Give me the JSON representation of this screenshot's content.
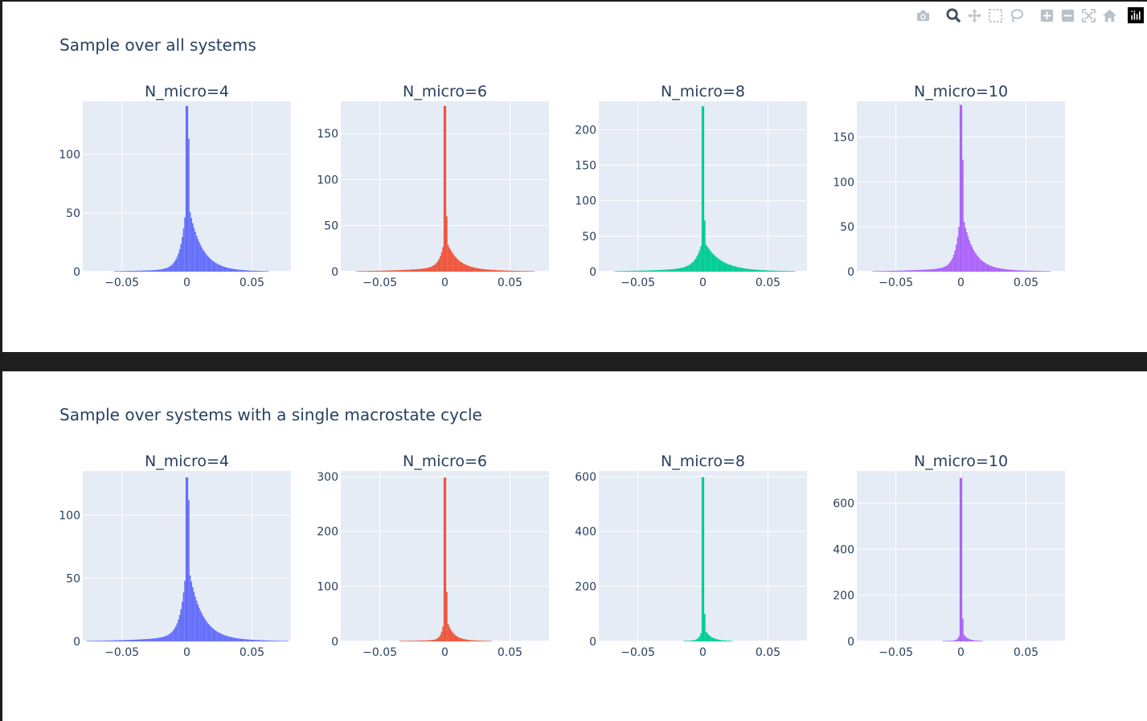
{
  "figures": [
    {
      "title": "Sample over all systems",
      "panels": [
        {
          "subtitle": "N_micro=4",
          "color": "#636efa",
          "ymax": 145,
          "yticks": [
            0,
            50,
            100
          ],
          "peak": 141,
          "peak2": 113,
          "width": 0.006,
          "tailRatio": 0.02,
          "xticks": [
            "−0.05",
            "0",
            "0.05"
          ]
        },
        {
          "subtitle": "N_micro=6",
          "color": "#EF553B",
          "ymax": 185,
          "yticks": [
            0,
            50,
            100,
            150
          ],
          "peak": 180,
          "peak2": 60,
          "width": 0.005,
          "tailRatio": 0.03,
          "xticks": [
            "−0.05",
            "0",
            "0.05"
          ]
        },
        {
          "subtitle": "N_micro=8",
          "color": "#00cc96",
          "ymax": 240,
          "yticks": [
            0,
            50,
            100,
            150,
            200
          ],
          "peak": 233,
          "peak2": 72,
          "width": 0.007,
          "tailRatio": 0.03,
          "xticks": [
            "−0.05",
            "0",
            "0.05"
          ]
        },
        {
          "subtitle": "N_micro=10",
          "color": "#ab63fa",
          "ymax": 190,
          "yticks": [
            0,
            50,
            100,
            150
          ],
          "peak": 186,
          "peak2": 125,
          "width": 0.005,
          "tailRatio": 0.03,
          "xticks": [
            "−0.05",
            "0",
            "0.05"
          ]
        }
      ]
    },
    {
      "title": "Sample over systems with a single macrostate cycle",
      "panels": [
        {
          "subtitle": "N_micro=4",
          "color": "#636efa",
          "ymax": 135,
          "yticks": [
            0,
            50,
            100
          ],
          "peak": 130,
          "peak2": 112,
          "width": 0.006,
          "tailRatio": 0.04,
          "xticks": [
            "−0.05",
            "0",
            "0.05"
          ]
        },
        {
          "subtitle": "N_micro=6",
          "color": "#EF553B",
          "ymax": 310,
          "yticks": [
            0,
            100,
            200,
            300
          ],
          "peak": 298,
          "peak2": 90,
          "width": 0.003,
          "tailRatio": 0.01,
          "xticks": [
            "−0.05",
            "0",
            "0.05"
          ]
        },
        {
          "subtitle": "N_micro=8",
          "color": "#00cc96",
          "ymax": 620,
          "yticks": [
            0,
            200,
            400,
            600
          ],
          "peak": 598,
          "peak2": 100,
          "width": 0.003,
          "tailRatio": 0.005,
          "xticks": [
            "−0.05",
            "0",
            "0.05"
          ]
        },
        {
          "subtitle": "N_micro=10",
          "color": "#ab63fa",
          "ymax": 740,
          "yticks": [
            0,
            200,
            400,
            600
          ],
          "peak": 710,
          "peak2": 100,
          "width": 0.002,
          "tailRatio": 0.005,
          "xticks": [
            "−0.05",
            "0",
            "0.05"
          ]
        }
      ]
    }
  ],
  "chart_data": [
    {
      "type": "bar",
      "title": "Sample over all systems",
      "series": [
        {
          "name": "N_micro=4",
          "x_range": [
            -0.08,
            0.08
          ],
          "peak_x": 0,
          "peak_count": 141,
          "y_range": [
            0,
            145
          ]
        },
        {
          "name": "N_micro=6",
          "x_range": [
            -0.08,
            0.08
          ],
          "peak_x": 0,
          "peak_count": 180,
          "y_range": [
            0,
            185
          ]
        },
        {
          "name": "N_micro=8",
          "x_range": [
            -0.08,
            0.08
          ],
          "peak_x": 0,
          "peak_count": 233,
          "y_range": [
            0,
            240
          ]
        },
        {
          "name": "N_micro=10",
          "x_range": [
            -0.08,
            0.08
          ],
          "peak_x": 0,
          "peak_count": 186,
          "y_range": [
            0,
            190
          ]
        }
      ]
    },
    {
      "type": "bar",
      "title": "Sample over systems with a single macrostate cycle",
      "series": [
        {
          "name": "N_micro=4",
          "x_range": [
            -0.08,
            0.08
          ],
          "peak_x": 0,
          "peak_count": 130,
          "y_range": [
            0,
            135
          ]
        },
        {
          "name": "N_micro=6",
          "x_range": [
            -0.08,
            0.08
          ],
          "peak_x": 0,
          "peak_count": 298,
          "y_range": [
            0,
            310
          ]
        },
        {
          "name": "N_micro=8",
          "x_range": [
            -0.08,
            0.08
          ],
          "peak_x": 0,
          "peak_count": 598,
          "y_range": [
            0,
            620
          ]
        },
        {
          "name": "N_micro=10",
          "x_range": [
            -0.08,
            0.08
          ],
          "peak_x": 0,
          "peak_count": 710,
          "y_range": [
            0,
            740
          ]
        }
      ]
    }
  ],
  "modebar": {
    "icons": [
      "camera-icon",
      "zoom-icon",
      "pan-icon",
      "box-select-icon",
      "lasso-select-icon",
      "zoom-in-icon",
      "zoom-out-icon",
      "autoscale-icon",
      "reset-axes-icon",
      "plotly-logo-icon"
    ]
  }
}
